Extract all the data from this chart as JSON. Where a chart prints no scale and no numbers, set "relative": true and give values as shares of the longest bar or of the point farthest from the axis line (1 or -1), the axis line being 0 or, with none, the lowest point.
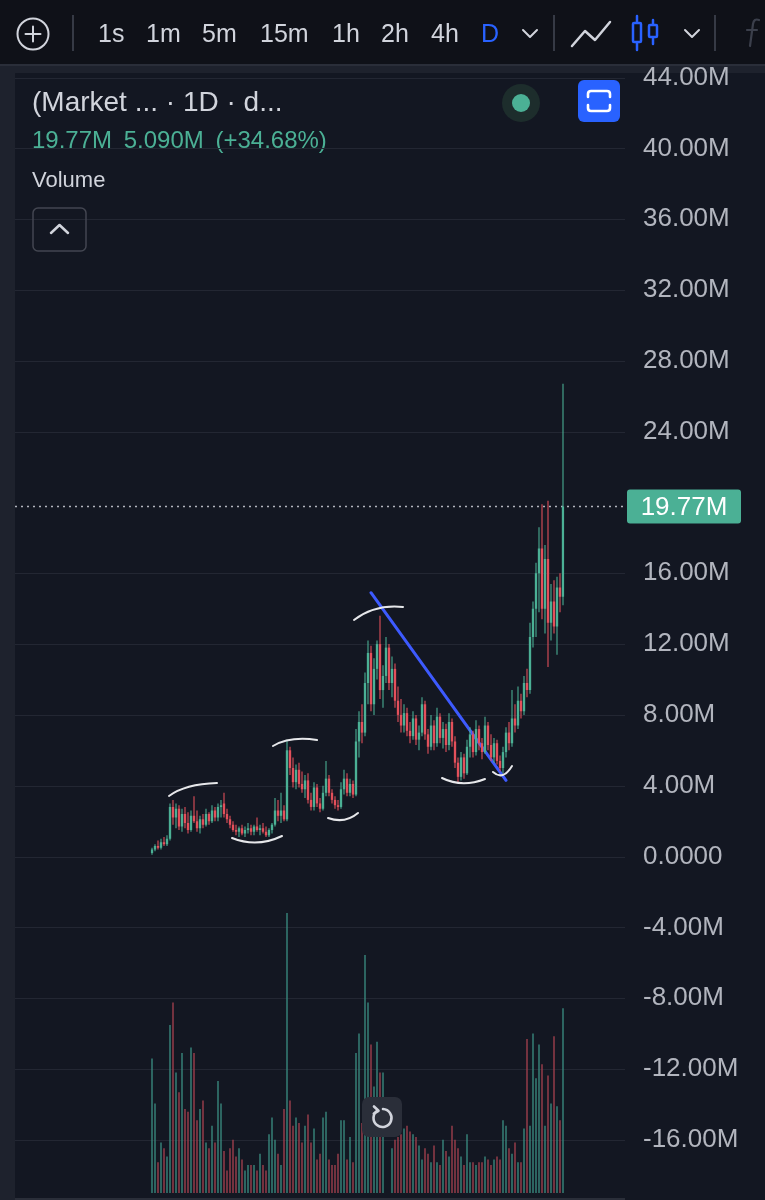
{
  "chart_data": [
    {
      "type": "candlestick",
      "title": "(Market ... · 1D · d...",
      "categories": [
        null,
        null,
        null,
        null,
        null,
        null,
        null,
        null,
        null,
        null,
        null,
        null,
        null,
        null,
        null,
        null,
        null,
        null,
        null,
        null,
        null,
        null,
        null,
        null,
        null,
        null,
        null,
        null,
        null,
        null,
        null,
        null,
        null,
        null,
        null,
        null,
        null,
        null,
        null,
        null,
        null,
        null,
        null,
        null,
        null,
        null,
        null,
        null,
        null,
        null,
        null,
        null,
        null,
        null,
        null,
        null,
        null,
        null,
        null,
        null,
        null,
        null,
        null,
        null,
        null,
        null,
        null,
        null,
        null,
        null,
        null,
        null,
        null,
        null,
        null,
        null,
        null,
        null,
        null,
        null,
        null,
        null,
        null,
        null,
        null,
        null,
        null,
        null,
        null,
        null,
        null,
        null,
        null,
        null,
        null,
        null,
        null,
        null,
        null,
        null,
        null,
        null,
        null,
        null,
        null,
        null,
        null,
        null,
        null,
        null,
        null,
        null,
        null,
        null,
        null,
        null,
        null,
        null,
        null,
        null,
        null,
        null,
        null,
        null,
        null,
        null,
        null,
        null,
        null,
        null,
        null,
        null,
        null,
        null,
        null,
        null,
        null,
        null
      ],
      "ohlc": [
        [
          0.2,
          0.5,
          0.1,
          0.4
        ],
        [
          0.4,
          0.7,
          0.3,
          0.6
        ],
        [
          0.6,
          0.9,
          0.4,
          0.5
        ],
        [
          0.5,
          1.0,
          0.4,
          0.8
        ],
        [
          0.8,
          1.1,
          0.6,
          0.7
        ],
        [
          0.7,
          1.2,
          0.6,
          1.0
        ],
        [
          1.0,
          3.0,
          0.9,
          2.8
        ],
        [
          2.8,
          3.2,
          1.8,
          2.2
        ],
        [
          2.2,
          3.0,
          1.6,
          2.7
        ],
        [
          2.7,
          2.9,
          1.5,
          1.7
        ],
        [
          1.7,
          2.7,
          1.4,
          2.4
        ],
        [
          2.4,
          2.8,
          1.6,
          1.9
        ],
        [
          1.9,
          2.5,
          1.3,
          1.5
        ],
        [
          1.5,
          2.6,
          1.4,
          2.3
        ],
        [
          2.3,
          3.4,
          1.9,
          2.0
        ],
        [
          2.0,
          2.6,
          1.4,
          1.6
        ],
        [
          1.6,
          2.3,
          1.3,
          2.1
        ],
        [
          2.1,
          2.4,
          1.6,
          1.8
        ],
        [
          1.8,
          2.7,
          1.7,
          2.4
        ],
        [
          2.4,
          2.5,
          1.8,
          2.0
        ],
        [
          2.0,
          2.9,
          1.9,
          2.6
        ],
        [
          2.6,
          2.8,
          2.0,
          2.2
        ],
        [
          2.2,
          3.0,
          2.0,
          2.8
        ],
        [
          2.8,
          3.2,
          2.2,
          2.9
        ],
        [
          3.0,
          3.6,
          2.2,
          2.4
        ],
        [
          2.4,
          2.7,
          1.9,
          2.1
        ],
        [
          2.1,
          2.3,
          1.6,
          1.8
        ],
        [
          1.8,
          2.0,
          1.4,
          1.5
        ],
        [
          1.5,
          1.8,
          1.2,
          1.4
        ],
        [
          1.4,
          1.7,
          1.1,
          1.6
        ],
        [
          1.6,
          1.8,
          1.2,
          1.3
        ],
        [
          1.3,
          1.7,
          1.1,
          1.5
        ],
        [
          1.5,
          1.9,
          1.3,
          1.6
        ],
        [
          1.6,
          1.8,
          1.2,
          1.4
        ],
        [
          1.4,
          1.8,
          1.2,
          1.7
        ],
        [
          1.7,
          2.2,
          1.4,
          1.5
        ],
        [
          1.5,
          1.8,
          1.2,
          1.6
        ],
        [
          1.6,
          1.9,
          1.3,
          1.4
        ],
        [
          1.4,
          1.7,
          1.1,
          1.2
        ],
        [
          1.2,
          1.6,
          1.1,
          1.5
        ],
        [
          1.5,
          1.9,
          1.3,
          1.8
        ],
        [
          1.8,
          3.3,
          1.7,
          2.6
        ],
        [
          2.6,
          3.2,
          2.0,
          2.3
        ],
        [
          2.3,
          3.6,
          1.9,
          2.6
        ],
        [
          2.6,
          2.9,
          2.0,
          2.1
        ],
        [
          2.1,
          6.6,
          2.0,
          6.0
        ],
        [
          6.0,
          6.2,
          4.6,
          5.0
        ],
        [
          5.0,
          5.6,
          3.9,
          4.2
        ],
        [
          4.2,
          5.2,
          3.8,
          4.9
        ],
        [
          4.9,
          5.3,
          3.9,
          4.1
        ],
        [
          4.1,
          4.8,
          3.6,
          3.8
        ],
        [
          3.8,
          4.6,
          3.3,
          4.3
        ],
        [
          4.3,
          4.7,
          3.0,
          3.2
        ],
        [
          3.2,
          3.6,
          2.6,
          2.8
        ],
        [
          2.8,
          4.2,
          2.6,
          3.9
        ],
        [
          3.9,
          4.1,
          2.8,
          3.0
        ],
        [
          3.0,
          3.3,
          2.5,
          2.7
        ],
        [
          2.7,
          4.0,
          2.6,
          3.6
        ],
        [
          3.6,
          5.4,
          3.4,
          4.4
        ],
        [
          4.4,
          4.6,
          3.4,
          3.6
        ],
        [
          3.6,
          3.8,
          3.0,
          3.2
        ],
        [
          3.2,
          3.4,
          2.7,
          2.9
        ],
        [
          2.9,
          3.2,
          2.6,
          2.8
        ],
        [
          2.8,
          4.2,
          2.7,
          3.8
        ],
        [
          3.8,
          4.9,
          3.5,
          4.4
        ],
        [
          4.4,
          4.7,
          3.4,
          3.6
        ],
        [
          3.6,
          4.4,
          3.4,
          4.1
        ],
        [
          4.1,
          4.3,
          3.3,
          3.5
        ],
        [
          3.5,
          7.2,
          3.4,
          6.5
        ],
        [
          6.5,
          8.2,
          5.6,
          7.6
        ],
        [
          7.6,
          8.6,
          6.4,
          7.0
        ],
        [
          7.0,
          10.4,
          6.8,
          9.8
        ],
        [
          9.8,
          12.2,
          8.6,
          11.5
        ],
        [
          11.5,
          11.9,
          8.2,
          8.6
        ],
        [
          8.6,
          11.2,
          8.0,
          10.6
        ],
        [
          10.6,
          12.2,
          10.0,
          12.0
        ],
        [
          12.0,
          13.6,
          8.9,
          9.4
        ],
        [
          9.4,
          10.8,
          8.4,
          10.2
        ],
        [
          10.2,
          12.4,
          9.8,
          11.8
        ],
        [
          11.8,
          12.0,
          9.4,
          9.8
        ],
        [
          9.8,
          11.3,
          9.0,
          10.6
        ],
        [
          10.6,
          10.9,
          8.4,
          8.8
        ],
        [
          8.8,
          9.6,
          7.6,
          8.0
        ],
        [
          8.0,
          8.9,
          7.0,
          7.4
        ],
        [
          7.4,
          8.6,
          7.0,
          8.1
        ],
        [
          8.1,
          8.4,
          6.8,
          7.1
        ],
        [
          7.1,
          7.6,
          6.4,
          6.8
        ],
        [
          6.8,
          8.2,
          6.6,
          7.8
        ],
        [
          7.8,
          8.0,
          6.3,
          6.6
        ],
        [
          6.6,
          7.4,
          6.0,
          7.0
        ],
        [
          7.0,
          9.0,
          6.8,
          8.6
        ],
        [
          8.6,
          8.8,
          6.6,
          6.9
        ],
        [
          6.9,
          7.2,
          5.8,
          6.2
        ],
        [
          6.2,
          8.0,
          6.0,
          7.4
        ],
        [
          7.4,
          7.7,
          6.0,
          6.4
        ],
        [
          6.4,
          8.4,
          6.2,
          7.9
        ],
        [
          7.9,
          8.1,
          6.4,
          6.7
        ],
        [
          6.7,
          7.6,
          6.1,
          7.2
        ],
        [
          7.2,
          7.5,
          5.9,
          6.3
        ],
        [
          6.3,
          8.1,
          6.0,
          7.6
        ],
        [
          7.6,
          7.8,
          6.2,
          6.5
        ],
        [
          6.5,
          6.8,
          5.0,
          5.3
        ],
        [
          5.3,
          5.6,
          4.2,
          4.5
        ],
        [
          4.5,
          5.9,
          4.3,
          5.6
        ],
        [
          5.6,
          5.8,
          4.4,
          4.7
        ],
        [
          4.7,
          6.6,
          4.6,
          6.2
        ],
        [
          6.2,
          7.3,
          5.6,
          6.9
        ],
        [
          6.9,
          7.1,
          5.6,
          5.9
        ],
        [
          5.9,
          7.7,
          5.7,
          7.2
        ],
        [
          7.2,
          7.4,
          6.0,
          6.4
        ],
        [
          6.4,
          6.7,
          5.5,
          5.9
        ],
        [
          5.9,
          7.9,
          5.8,
          7.4
        ],
        [
          7.4,
          7.6,
          6.0,
          6.3
        ],
        [
          6.3,
          6.9,
          5.4,
          5.6
        ],
        [
          5.6,
          6.7,
          5.3,
          6.4
        ],
        [
          6.4,
          6.6,
          5.2,
          5.4
        ],
        [
          5.4,
          5.7,
          4.8,
          5.0
        ],
        [
          5.0,
          6.2,
          4.7,
          5.9
        ],
        [
          5.9,
          7.3,
          5.6,
          7.0
        ],
        [
          7.0,
          7.6,
          6.0,
          6.4
        ],
        [
          6.4,
          9.4,
          6.2,
          7.8
        ],
        [
          7.8,
          8.6,
          7.0,
          7.4
        ],
        [
          7.4,
          9.6,
          7.2,
          8.8
        ],
        [
          8.8,
          9.2,
          7.8,
          8.2
        ],
        [
          8.2,
          10.2,
          8.0,
          9.8
        ],
        [
          9.8,
          10.6,
          9.0,
          9.4
        ],
        [
          9.4,
          13.2,
          9.2,
          12.4
        ],
        [
          12.4,
          14.4,
          11.8,
          14.0
        ],
        [
          14.0,
          16.6,
          12.4,
          16.0
        ],
        [
          16.0,
          18.6,
          13.8,
          17.4
        ],
        [
          17.4,
          19.9,
          13.4,
          14.0
        ],
        [
          14.0,
          17.6,
          12.6,
          16.8
        ],
        [
          16.8,
          20.1,
          10.7,
          13.2
        ],
        [
          13.2,
          15.4,
          12.2,
          14.4
        ],
        [
          14.4,
          15.6,
          12.6,
          13.0
        ],
        [
          13.0,
          15.8,
          11.4,
          15.2
        ],
        [
          15.2,
          16.0,
          13.8,
          14.68
        ],
        [
          14.68,
          26.7,
          14.2,
          19.77
        ]
      ],
      "colors": [
        "#4bb095",
        "#4bb095",
        "#e4505b",
        "#4bb095",
        "#e4505b",
        "#4bb095",
        "#4bb095",
        "#e4505b",
        "#4bb095",
        "#e4505b",
        "#4bb095",
        "#e4505b",
        "#e4505b",
        "#4bb095",
        "#e4505b",
        "#e4505b",
        "#4bb095",
        "#e4505b",
        "#4bb095",
        "#e4505b",
        "#4bb095",
        "#e4505b",
        "#4bb095",
        "#4bb095",
        "#e4505b",
        "#e4505b",
        "#e4505b",
        "#e4505b",
        "#e4505b",
        "#4bb095",
        "#e4505b",
        "#4bb095",
        "#4bb095",
        "#e4505b",
        "#4bb095",
        "#e4505b",
        "#4bb095",
        "#e4505b",
        "#e4505b",
        "#4bb095",
        "#4bb095",
        "#4bb095",
        "#e4505b",
        "#4bb095",
        "#e4505b",
        "#4bb095",
        "#e4505b",
        "#e4505b",
        "#4bb095",
        "#e4505b",
        "#e4505b",
        "#4bb095",
        "#e4505b",
        "#e4505b",
        "#4bb095",
        "#e4505b",
        "#e4505b",
        "#4bb095",
        "#4bb095",
        "#e4505b",
        "#e4505b",
        "#e4505b",
        "#e4505b",
        "#4bb095",
        "#4bb095",
        "#e4505b",
        "#4bb095",
        "#e4505b",
        "#4bb095",
        "#4bb095",
        "#e4505b",
        "#4bb095",
        "#4bb095",
        "#e4505b",
        "#4bb095",
        "#4bb095",
        "#e4505b",
        "#4bb095",
        "#4bb095",
        "#e4505b",
        "#4bb095",
        "#e4505b",
        "#e4505b",
        "#e4505b",
        "#4bb095",
        "#e4505b",
        "#e4505b",
        "#4bb095",
        "#e4505b",
        "#4bb095",
        "#4bb095",
        "#e4505b",
        "#e4505b",
        "#4bb095",
        "#e4505b",
        "#4bb095",
        "#e4505b",
        "#4bb095",
        "#e4505b",
        "#4bb095",
        "#e4505b",
        "#e4505b",
        "#e4505b",
        "#4bb095",
        "#e4505b",
        "#4bb095",
        "#4bb095",
        "#e4505b",
        "#4bb095",
        "#e4505b",
        "#e4505b",
        "#4bb095",
        "#e4505b",
        "#e4505b",
        "#4bb095",
        "#e4505b",
        "#e4505b",
        "#4bb095",
        "#4bb095",
        "#e4505b",
        "#4bb095",
        "#e4505b",
        "#4bb095",
        "#e4505b",
        "#4bb095",
        "#e4505b",
        "#4bb095",
        "#4bb095",
        "#4bb095",
        "#4bb095",
        "#e4505b",
        "#4bb095",
        "#e4505b",
        "#4bb095",
        "#e4505b",
        "#4bb095",
        "#e4505b",
        "#4bb095"
      ],
      "series": [
        {
          "type": "line",
          "color": "#3d5afe",
          "values": [
            null,
            null,
            null,
            null,
            null,
            null,
            null,
            null,
            null,
            null,
            null,
            null,
            null,
            null,
            null,
            null,
            null,
            null,
            null,
            null,
            null,
            null,
            null,
            null,
            null,
            null,
            null,
            null,
            null,
            null,
            null,
            null,
            null,
            null,
            null,
            null,
            null,
            null,
            null,
            null,
            null,
            null,
            null,
            null,
            null,
            null,
            null,
            null,
            null,
            null,
            null,
            null,
            null,
            null,
            null,
            null,
            null,
            null,
            null,
            null,
            null,
            null,
            null,
            null,
            null,
            null,
            null,
            null,
            null,
            null,
            null,
            null,
            null,
            14.9,
            null,
            null,
            null,
            null,
            null,
            null,
            null,
            null,
            null,
            null,
            null,
            null,
            null,
            null,
            null,
            null,
            null,
            null,
            null,
            null,
            null,
            null,
            null,
            null,
            null,
            null,
            null,
            null,
            null,
            null,
            null,
            null,
            null,
            null,
            null,
            null,
            null,
            null,
            null,
            null,
            null,
            null,
            null,
            null,
            4.3,
            null,
            null,
            null,
            null,
            null,
            null,
            null,
            null,
            null,
            null,
            null,
            null,
            null,
            null,
            null,
            null,
            null,
            null,
            null
          ]
        }
      ],
      "ylim": [
        -19.4,
        44.2
      ],
      "yticks": [
        {
          "value": -16,
          "label": "-16.00M"
        },
        {
          "value": -12,
          "label": "-12.00M"
        },
        {
          "value": -8,
          "label": "-8.00M"
        },
        {
          "value": -4,
          "label": "-4.00M"
        },
        {
          "value": 0,
          "label": "0.0000"
        },
        {
          "value": 4,
          "label": "4.00M"
        },
        {
          "value": 8,
          "label": "8.00M"
        },
        {
          "value": 12,
          "label": "12.00M"
        },
        {
          "value": 16,
          "label": "16.00M"
        },
        {
          "value": 24,
          "label": "24.00M"
        },
        {
          "value": 28,
          "label": "28.00M"
        },
        {
          "value": 32,
          "label": "32.00M"
        },
        {
          "value": 36,
          "label": "36.00M"
        },
        {
          "value": 40,
          "label": "40.00M"
        },
        {
          "value": 44,
          "label": "44.00M"
        }
      ],
      "grid": "y",
      "ref_lines": [
        {
          "axis": "y",
          "value": 19.77,
          "label": "19.77M",
          "color": "#b2b5be",
          "line_style": "dotted"
        }
      ],
      "annotations": [
        "1s",
        "1m",
        "5m",
        "15m",
        "1h",
        "2h",
        "4h",
        "D",
        "19.77M 5.090M (+34.68%)"
      ]
    },
    {
      "type": "bar",
      "title": "Volume",
      "relative": true,
      "categories": [
        null,
        null,
        null,
        null,
        null,
        null,
        null,
        null,
        null,
        null,
        null,
        null,
        null,
        null,
        null,
        null,
        null,
        null,
        null,
        null,
        null,
        null,
        null,
        null,
        null,
        null,
        null,
        null,
        null,
        null,
        null,
        null,
        null,
        null,
        null,
        null,
        null,
        null,
        null,
        null,
        null,
        null,
        null,
        null,
        null,
        null,
        null,
        null,
        null,
        null,
        null,
        null,
        null,
        null,
        null,
        null,
        null,
        null,
        null,
        null,
        null,
        null,
        null,
        null,
        null,
        null,
        null,
        null,
        null,
        null,
        null,
        null,
        null,
        null,
        null,
        null,
        null,
        null,
        null,
        null,
        null,
        null,
        null,
        null,
        null,
        null,
        null,
        null,
        null,
        null,
        null,
        null,
        null,
        null,
        null,
        null,
        null,
        null,
        null,
        null,
        null,
        null,
        null,
        null,
        null,
        null,
        null,
        null,
        null,
        null,
        null,
        null,
        null,
        null,
        null,
        null,
        null,
        null,
        null,
        null,
        null,
        null,
        null,
        null,
        null,
        null,
        null,
        null,
        null,
        null,
        null,
        null,
        null,
        null,
        null,
        null,
        null,
        null
      ],
      "values": [
        0.48,
        0.32,
        0.11,
        0.18,
        0.16,
        0.13,
        0.6,
        0.68,
        0.43,
        0.36,
        0.5,
        0.3,
        0.29,
        0.52,
        0.5,
        0.26,
        0.3,
        0.33,
        0.18,
        0.16,
        0.24,
        0.18,
        0.4,
        0.32,
        0.15,
        0.08,
        0.16,
        0.19,
        0.13,
        0.16,
        0.12,
        0.08,
        0.1,
        0.1,
        0.1,
        0.08,
        0.14,
        0.1,
        0.08,
        0.21,
        0.27,
        0.19,
        0.14,
        0.1,
        0.3,
        1,
        0.33,
        0.24,
        0.27,
        0.25,
        0.18,
        0.24,
        0.28,
        0.18,
        0.23,
        0.12,
        0.14,
        0.27,
        0.29,
        0.12,
        0.1,
        0.1,
        0.14,
        0.26,
        0.26,
        0.12,
        0.2,
        0.11,
        0.5,
        0.57,
        0.25,
        0.85,
        0.68,
        0.53,
        0.38,
        0.54,
        0.43,
        0.43,
        null,
        null,
        0.16,
        0.19,
        0.2,
        0.21,
        0.23,
        0.24,
        0.22,
        0.21,
        0.2,
        0.17,
        0.12,
        0.16,
        0.14,
        0.11,
        0.17,
        0.11,
        0.1,
        0.19,
        0.15,
        0.13,
        0.24,
        0.19,
        0.16,
        0.13,
        0.1,
        0.21,
        0.11,
        0.11,
        0.1,
        0.11,
        0.11,
        0.13,
        0.12,
        0.1,
        0.12,
        0.13,
        0.12,
        0.26,
        0.24,
        0.16,
        0.14,
        0.18,
        0.11,
        0.11,
        0.23,
        0.55,
        0.24,
        0.57,
        0.41,
        0.53,
        0.46,
        0.24,
        0.42,
        0.32,
        0.56,
        0.31,
        0.26,
        0.66
      ],
      "colors": [
        "#3a8c80",
        "#3a8c80",
        "#a3414e",
        "#3a8c80",
        "#a3414e",
        "#3a8c80",
        "#3a8c80",
        "#a3414e",
        "#3a8c80",
        "#a3414e",
        "#3a8c80",
        "#a3414e",
        "#a3414e",
        "#3a8c80",
        "#a3414e",
        "#a3414e",
        "#3a8c80",
        "#a3414e",
        "#3a8c80",
        "#a3414e",
        "#3a8c80",
        "#a3414e",
        "#3a8c80",
        "#3a8c80",
        "#a3414e",
        "#a3414e",
        "#a3414e",
        "#a3414e",
        "#a3414e",
        "#3a8c80",
        "#a3414e",
        "#3a8c80",
        "#3a8c80",
        "#a3414e",
        "#3a8c80",
        "#a3414e",
        "#3a8c80",
        "#a3414e",
        "#a3414e",
        "#3a8c80",
        "#3a8c80",
        "#3a8c80",
        "#a3414e",
        "#3a8c80",
        "#a3414e",
        "#3a8c80",
        "#a3414e",
        "#a3414e",
        "#3a8c80",
        "#a3414e",
        "#a3414e",
        "#3a8c80",
        "#a3414e",
        "#a3414e",
        "#3a8c80",
        "#a3414e",
        "#a3414e",
        "#3a8c80",
        "#3a8c80",
        "#a3414e",
        "#a3414e",
        "#a3414e",
        "#a3414e",
        "#3a8c80",
        "#3a8c80",
        "#a3414e",
        "#3a8c80",
        "#a3414e",
        "#3a8c80",
        "#3a8c80",
        "#a3414e",
        "#3a8c80",
        "#3a8c80",
        "#a3414e",
        "#3a8c80",
        "#3a8c80",
        "#a3414e",
        "#3a8c80",
        "#3a8c80",
        "#a3414e",
        "#3a8c80",
        "#a3414e",
        "#a3414e",
        "#a3414e",
        "#3a8c80",
        "#a3414e",
        "#a3414e",
        "#3a8c80",
        "#a3414e",
        "#3a8c80",
        "#3a8c80",
        "#a3414e",
        "#a3414e",
        "#3a8c80",
        "#a3414e",
        "#3a8c80",
        "#a3414e",
        "#3a8c80",
        "#a3414e",
        "#3a8c80",
        "#a3414e",
        "#a3414e",
        "#a3414e",
        "#3a8c80",
        "#a3414e",
        "#3a8c80",
        "#3a8c80",
        "#a3414e",
        "#3a8c80",
        "#a3414e",
        "#a3414e",
        "#3a8c80",
        "#a3414e",
        "#a3414e",
        "#3a8c80",
        "#a3414e",
        "#a3414e",
        "#3a8c80",
        "#3a8c80",
        "#a3414e",
        "#3a8c80",
        "#a3414e",
        "#3a8c80",
        "#a3414e",
        "#3a8c80",
        "#a3414e",
        "#3a8c80",
        "#3a8c80",
        "#3a8c80",
        "#3a8c80",
        "#a3414e",
        "#3a8c80",
        "#a3414e",
        "#3a8c80",
        "#a3414e",
        "#3a8c80",
        "#a3414e",
        "#3a8c80"
      ]
    }
  ]
}
